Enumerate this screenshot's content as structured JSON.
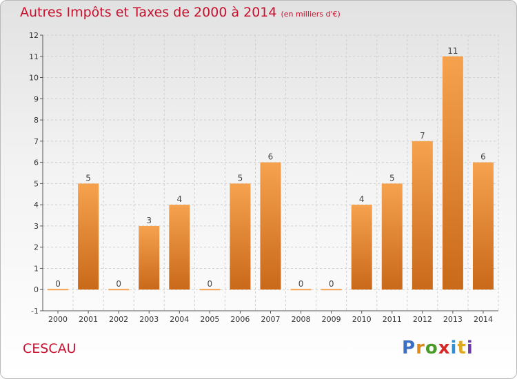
{
  "title": "Autres Impôts et Taxes de 2000 à 2014",
  "subtitle": "(en milliers d'€)",
  "commune": "CESCAU",
  "logo_letters": [
    "P",
    "r",
    "o",
    "x",
    "i",
    "t",
    "i"
  ],
  "logo_colors": [
    "#3a6fc4",
    "#e08a1c",
    "#4a9a2a",
    "#d62828",
    "#2f8fd1",
    "#e0a81c",
    "#6b3aa8"
  ],
  "colors": {
    "bar_light": "#f5a24e",
    "bar_dark": "#c9691a",
    "title": "#c8102e",
    "axis": "#555555",
    "grid": "#cfcfcf"
  },
  "chart_data": {
    "type": "bar",
    "categories": [
      "2000",
      "2001",
      "2002",
      "2003",
      "2004",
      "2005",
      "2006",
      "2007",
      "2008",
      "2009",
      "2010",
      "2011",
      "2012",
      "2013",
      "2014"
    ],
    "values": [
      0,
      5,
      0,
      3,
      4,
      0,
      5,
      6,
      0,
      0,
      4,
      5,
      7,
      11,
      6
    ],
    "value_labels": [
      "0",
      "5",
      "0",
      "3",
      "4",
      "0",
      "5",
      "6",
      "0",
      "0",
      "4",
      "5",
      "7",
      "11",
      "6"
    ],
    "y_ticks": [
      "-1",
      "0",
      "1",
      "2",
      "3",
      "4",
      "5",
      "6",
      "7",
      "8",
      "9",
      "10",
      "11",
      "12"
    ],
    "ylim": [
      -1,
      12
    ],
    "grid": true
  }
}
